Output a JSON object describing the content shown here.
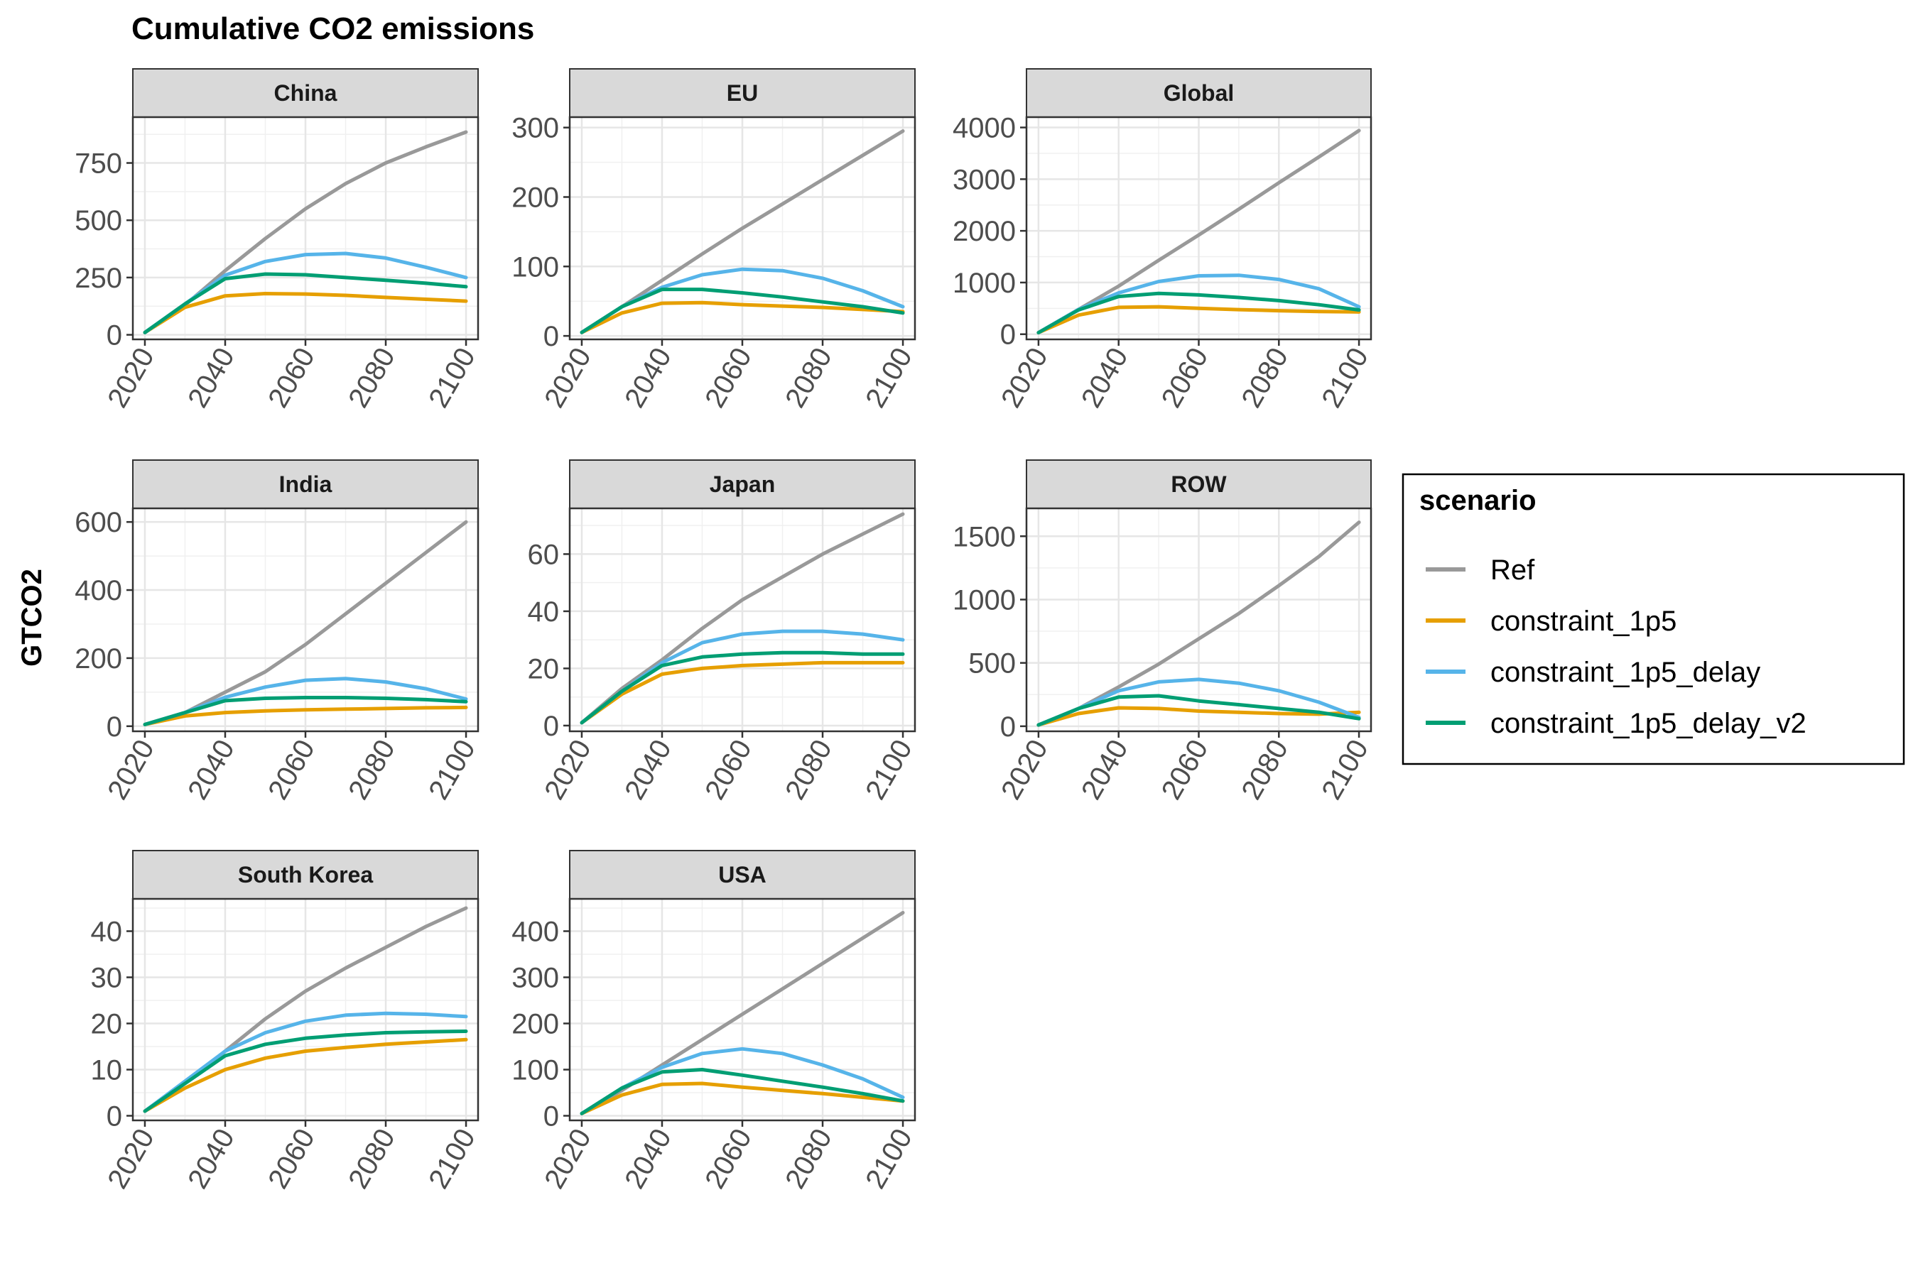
{
  "chart_data": {
    "type": "line",
    "title": "Cumulative CO2 emissions",
    "ylabel": "GTCO2",
    "xlabel": "",
    "x": [
      2020,
      2030,
      2040,
      2050,
      2060,
      2070,
      2080,
      2090,
      2100
    ],
    "x_ticks": [
      "2020",
      "2040",
      "2060",
      "2080",
      "2100"
    ],
    "grid": true,
    "legend": {
      "title": "scenario",
      "position": "right",
      "entries": [
        "Ref",
        "constraint_1p5",
        "constraint_1p5_delay",
        "constraint_1p5_delay_v2"
      ]
    },
    "colors": {
      "Ref": "#999999",
      "constraint_1p5": "#E69F00",
      "constraint_1p5_delay": "#56B4E9",
      "constraint_1p5_delay_v2": "#009E73"
    },
    "facets": [
      {
        "name": "China",
        "ylim": [
          -20,
          950
        ],
        "yticks": [
          0,
          250,
          500,
          750
        ],
        "series": [
          {
            "name": "Ref",
            "values": [
              10,
              130,
              280,
              420,
              550,
              660,
              750,
              820,
              885
            ]
          },
          {
            "name": "constraint_1p5",
            "values": [
              10,
              120,
              170,
              180,
              178,
              172,
              163,
              155,
              147
            ]
          },
          {
            "name": "constraint_1p5_delay",
            "values": [
              10,
              135,
              260,
              320,
              350,
              355,
              335,
              295,
              250
            ]
          },
          {
            "name": "constraint_1p5_delay_v2",
            "values": [
              10,
              135,
              245,
              265,
              262,
              250,
              238,
              225,
              210
            ]
          }
        ]
      },
      {
        "name": "EU",
        "ylim": [
          -5,
          315
        ],
        "yticks": [
          0,
          100,
          200,
          300
        ],
        "series": [
          {
            "name": "Ref",
            "values": [
              5,
              42,
              80,
              118,
              155,
              190,
              225,
              260,
              295
            ]
          },
          {
            "name": "constraint_1p5",
            "values": [
              5,
              33,
              47,
              48,
              45,
              43,
              41,
              38,
              35
            ]
          },
          {
            "name": "constraint_1p5_delay",
            "values": [
              5,
              42,
              70,
              88,
              96,
              94,
              83,
              65,
              42
            ]
          },
          {
            "name": "constraint_1p5_delay_v2",
            "values": [
              5,
              42,
              67,
              67,
              62,
              56,
              49,
              42,
              33
            ]
          }
        ]
      },
      {
        "name": "Global",
        "ylim": [
          -100,
          4200
        ],
        "yticks": [
          0,
          1000,
          2000,
          3000,
          4000
        ],
        "series": [
          {
            "name": "Ref",
            "values": [
              30,
              480,
              930,
              1430,
              1920,
              2420,
              2930,
              3430,
              3940
            ]
          },
          {
            "name": "constraint_1p5",
            "values": [
              30,
              370,
              520,
              530,
              500,
              475,
              455,
              440,
              430
            ]
          },
          {
            "name": "constraint_1p5_delay",
            "values": [
              30,
              480,
              800,
              1020,
              1130,
              1140,
              1060,
              880,
              530
            ]
          },
          {
            "name": "constraint_1p5_delay_v2",
            "values": [
              30,
              470,
              730,
              790,
              760,
              710,
              650,
              570,
              470
            ]
          }
        ]
      },
      {
        "name": "India",
        "ylim": [
          -15,
          640
        ],
        "yticks": [
          0,
          200,
          400,
          600
        ],
        "series": [
          {
            "name": "Ref",
            "values": [
              5,
              40,
              100,
              160,
              240,
              330,
              420,
              510,
              600
            ]
          },
          {
            "name": "constraint_1p5",
            "values": [
              5,
              30,
              40,
              45,
              48,
              50,
              52,
              54,
              55
            ]
          },
          {
            "name": "constraint_1p5_delay",
            "values": [
              5,
              40,
              85,
              115,
              135,
              140,
              130,
              110,
              80
            ]
          },
          {
            "name": "constraint_1p5_delay_v2",
            "values": [
              5,
              40,
              75,
              82,
              84,
              84,
              82,
              78,
              72
            ]
          }
        ]
      },
      {
        "name": "Japan",
        "ylim": [
          -2,
          76
        ],
        "yticks": [
          0,
          20,
          40,
          60
        ],
        "series": [
          {
            "name": "Ref",
            "values": [
              1,
              13,
              23,
              34,
              44,
              52,
              60,
              67,
              74
            ]
          },
          {
            "name": "constraint_1p5",
            "values": [
              1,
              11,
              18,
              20,
              21,
              21.5,
              22,
              22,
              22
            ]
          },
          {
            "name": "constraint_1p5_delay",
            "values": [
              1,
              12,
              22,
              29,
              32,
              33,
              33,
              32,
              30
            ]
          },
          {
            "name": "constraint_1p5_delay_v2",
            "values": [
              1,
              12,
              21,
              24,
              25,
              25.5,
              25.5,
              25,
              25
            ]
          }
        ]
      },
      {
        "name": "ROW",
        "ylim": [
          -40,
          1720
        ],
        "yticks": [
          0,
          500,
          1000,
          1500
        ],
        "series": [
          {
            "name": "Ref",
            "values": [
              10,
              140,
              310,
              490,
              690,
              890,
              1110,
              1340,
              1610
            ]
          },
          {
            "name": "constraint_1p5",
            "values": [
              10,
              100,
              145,
              140,
              120,
              110,
              100,
              95,
              110
            ]
          },
          {
            "name": "constraint_1p5_delay",
            "values": [
              10,
              140,
              280,
              350,
              370,
              340,
              280,
              190,
              70
            ]
          },
          {
            "name": "constraint_1p5_delay_v2",
            "values": [
              10,
              140,
              230,
              240,
              200,
              170,
              140,
              110,
              60
            ]
          }
        ]
      },
      {
        "name": "South Korea",
        "ylim": [
          -1,
          47
        ],
        "yticks": [
          0,
          10,
          20,
          30,
          40
        ],
        "series": [
          {
            "name": "Ref",
            "values": [
              1,
              7,
              14,
              21,
              27,
              32,
              36.5,
              41,
              45
            ]
          },
          {
            "name": "constraint_1p5",
            "values": [
              1,
              6,
              10,
              12.5,
              14,
              14.8,
              15.5,
              16,
              16.5
            ]
          },
          {
            "name": "constraint_1p5_delay",
            "values": [
              1,
              7.5,
              14,
              18,
              20.5,
              21.8,
              22.2,
              22,
              21.5
            ]
          },
          {
            "name": "constraint_1p5_delay_v2",
            "values": [
              1,
              7,
              13,
              15.5,
              16.8,
              17.5,
              18,
              18.2,
              18.3
            ]
          }
        ]
      },
      {
        "name": "USA",
        "ylim": [
          -10,
          470
        ],
        "yticks": [
          0,
          100,
          200,
          300,
          400
        ],
        "series": [
          {
            "name": "Ref",
            "values": [
              5,
              55,
              110,
              165,
              220,
              275,
              330,
              385,
              440
            ]
          },
          {
            "name": "constraint_1p5",
            "values": [
              5,
              45,
              68,
              70,
              62,
              55,
              48,
              40,
              32
            ]
          },
          {
            "name": "constraint_1p5_delay",
            "values": [
              5,
              60,
              105,
              135,
              145,
              135,
              110,
              80,
              40
            ]
          },
          {
            "name": "constraint_1p5_delay_v2",
            "values": [
              5,
              60,
              95,
              100,
              88,
              75,
              62,
              48,
              32
            ]
          }
        ]
      }
    ]
  }
}
